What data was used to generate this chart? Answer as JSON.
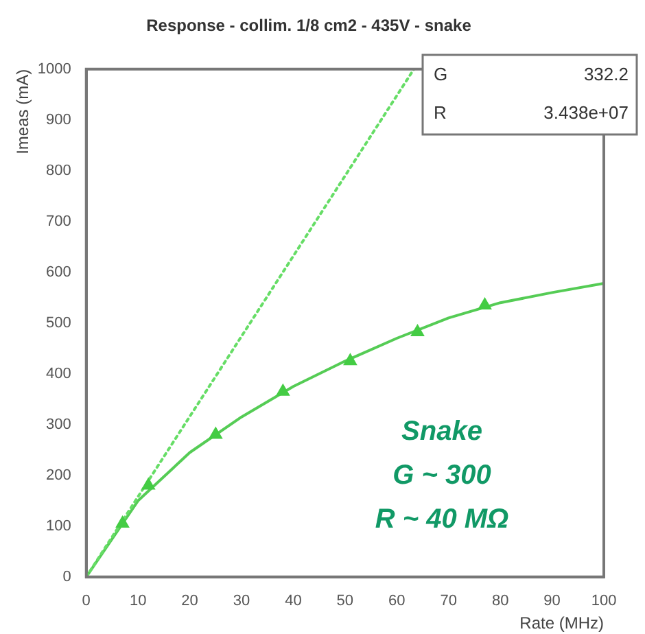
{
  "chart_data": {
    "type": "scatter",
    "title": "Response - collim. 1/8 cm2 - 435V - snake",
    "xlabel": "Rate (MHz)",
    "ylabel": "Imeas (mA)",
    "xlim": [
      0,
      100
    ],
    "ylim": [
      0,
      1000
    ],
    "xticks": [
      0,
      10,
      20,
      30,
      40,
      50,
      60,
      70,
      80,
      90,
      100
    ],
    "yticks": [
      0,
      100,
      200,
      300,
      400,
      500,
      600,
      700,
      800,
      900,
      1000
    ],
    "grid": false,
    "legend": false,
    "series": [
      {
        "type": "line",
        "color": "#66dd66",
        "line_style": "dotted",
        "marker": "none",
        "x": [
          0,
          63.3
        ],
        "values": [
          0,
          1000
        ]
      },
      {
        "type": "line",
        "color": "#55cc55",
        "line_style": "solid",
        "marker": "none",
        "x": [
          0,
          10,
          20,
          30,
          40,
          50,
          60,
          70,
          80,
          90,
          100
        ],
        "values": [
          0,
          150,
          245,
          315,
          375,
          425,
          470,
          510,
          540,
          560,
          578
        ]
      },
      {
        "color": "#44cc44",
        "marker": "triangle",
        "x": [
          7,
          12,
          25,
          38,
          51,
          64,
          77
        ],
        "values": [
          105,
          180,
          280,
          365,
          425,
          482,
          535
        ]
      }
    ],
    "annotations": [
      "G",
      "332.2",
      "R",
      "3.438e+07",
      "Snake",
      "G ~ 300",
      "R ~ 40 MΩ"
    ]
  }
}
